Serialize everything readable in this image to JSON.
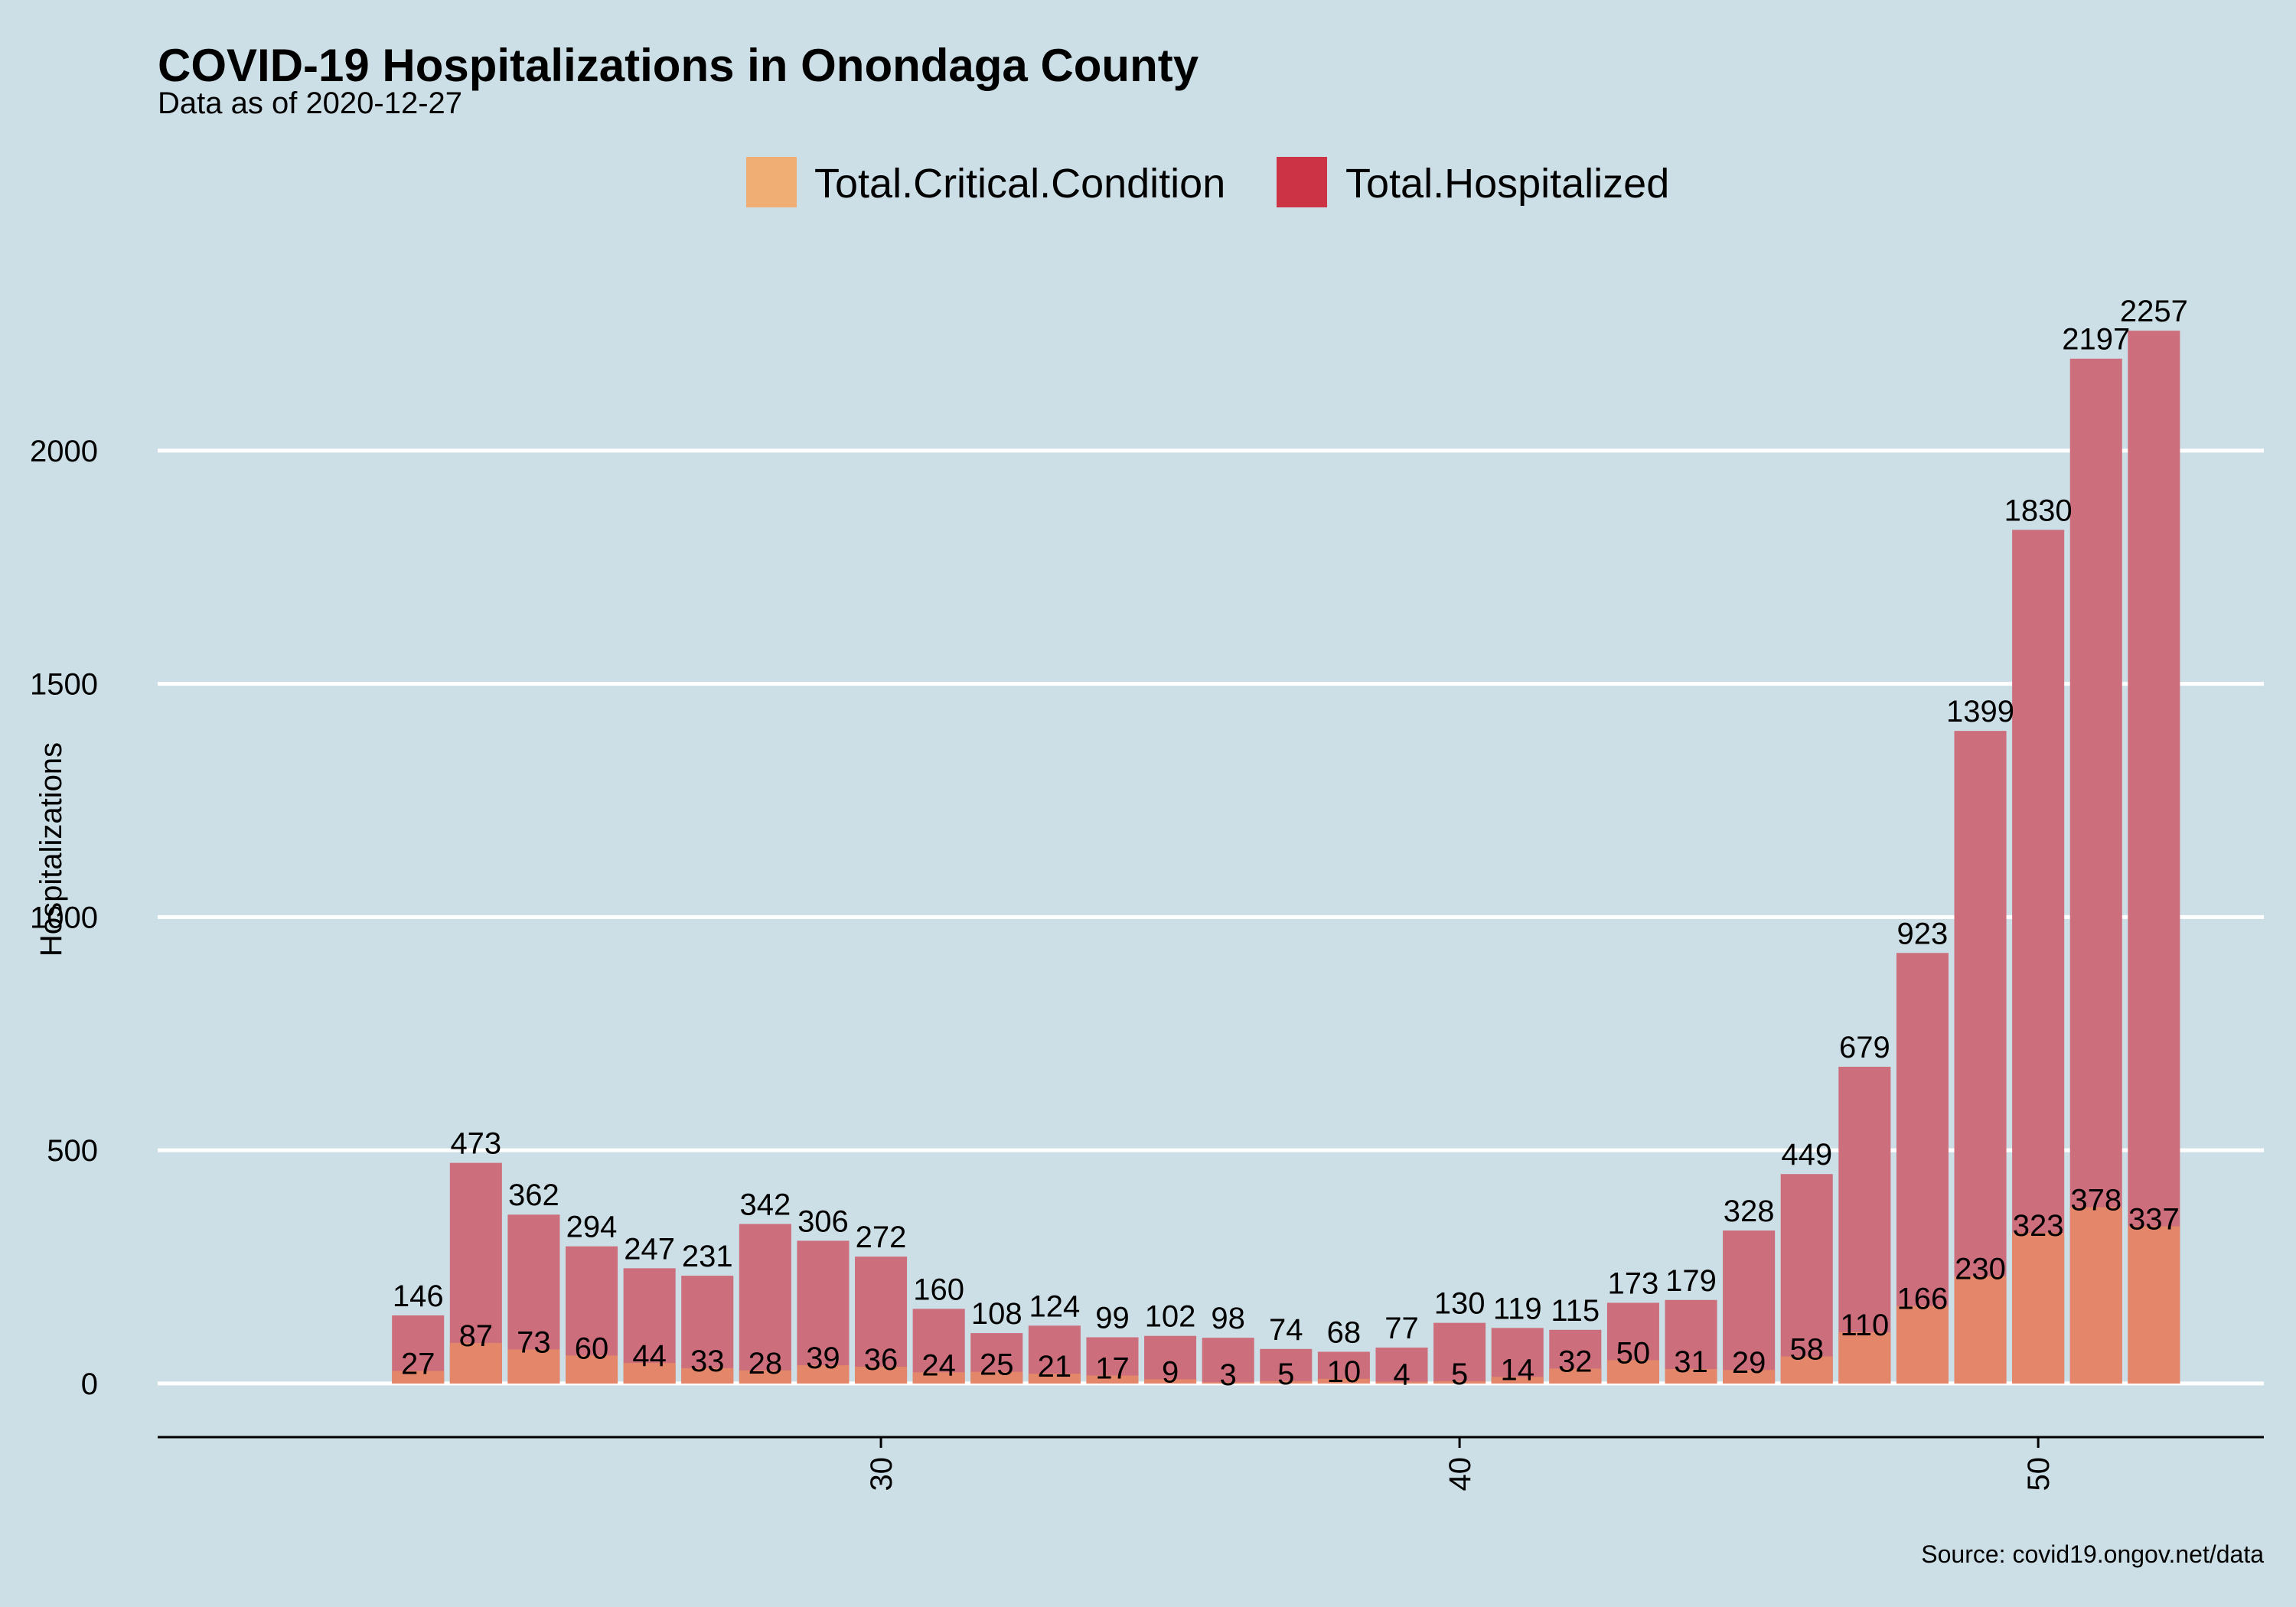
{
  "chart_data": {
    "type": "bar",
    "title": "COVID-19 Hospitalizations in Onondaga County",
    "subtitle": "Data as of 2020-12-27",
    "ylabel": "Hospitalizations",
    "xlabel": "",
    "caption": "Source: covid19.ongov.net/data",
    "x": [
      22,
      23,
      24,
      25,
      26,
      27,
      28,
      29,
      30,
      31,
      32,
      33,
      34,
      35,
      36,
      37,
      38,
      39,
      40,
      41,
      42,
      43,
      44,
      45,
      46,
      47,
      48,
      49,
      50,
      51,
      52
    ],
    "xlim": [
      17.5,
      53.9
    ],
    "ylim": [
      -115,
      2400
    ],
    "x_ticks": [
      30,
      40,
      50
    ],
    "y_ticks": [
      0,
      500,
      1000,
      1500,
      2000
    ],
    "grid": "horizontal major lines only",
    "legend_position": "top",
    "series": [
      {
        "name": "Total.Critical.Condition",
        "color": "#f0ad74",
        "values": [
          27,
          87,
          73,
          60,
          44,
          33,
          28,
          39,
          36,
          24,
          25,
          21,
          17,
          9,
          3,
          5,
          10,
          4,
          5,
          14,
          32,
          50,
          31,
          29,
          58,
          110,
          166,
          230,
          323,
          378,
          337
        ]
      },
      {
        "name": "Total.Hospitalized",
        "color": "#cc3344",
        "values": [
          146,
          473,
          362,
          294,
          247,
          231,
          342,
          306,
          272,
          160,
          108,
          124,
          99,
          102,
          98,
          74,
          68,
          77,
          130,
          119,
          115,
          173,
          179,
          328,
          449,
          679,
          923,
          1399,
          1830,
          2197,
          2257
        ]
      }
    ],
    "colors": {
      "background": "#cddfe6",
      "gridline": "#ffffff",
      "hospitalized_bar": "#cc6e7c",
      "critical_bar": "#e4866a"
    }
  }
}
